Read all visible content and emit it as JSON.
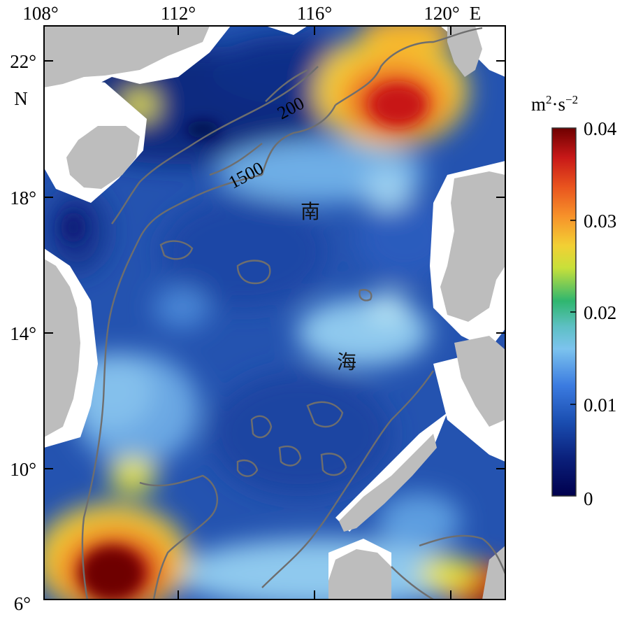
{
  "map": {
    "longitude_ticks": [
      "108°",
      "112°",
      "116°",
      "120°"
    ],
    "longitude_suffix": "E",
    "latitude_ticks": [
      "22°",
      "18°",
      "14°",
      "10°",
      "6°"
    ],
    "latitude_suffix": "N",
    "region_labels": [
      "南",
      "海"
    ],
    "contour_labels": [
      "200",
      "1500"
    ]
  },
  "colorbar": {
    "unit_base": "m",
    "unit_sup1": "2",
    "unit_mid": "·s",
    "unit_sup2": "−2",
    "ticks": [
      "0.04",
      "0.03",
      "0.02",
      "0.01",
      "0"
    ],
    "min": 0,
    "max": 0.04,
    "colors": [
      "#00004d",
      "#0a1f7a",
      "#1a4db0",
      "#3b7be0",
      "#7cc3ee",
      "#b5e2f3",
      "#2fb66f",
      "#e8e43a",
      "#f7b22a",
      "#e9541e",
      "#c81818",
      "#6e0000"
    ]
  },
  "colors": {
    "land": "#bdbdbd",
    "contour": "#6e6e6e"
  }
}
